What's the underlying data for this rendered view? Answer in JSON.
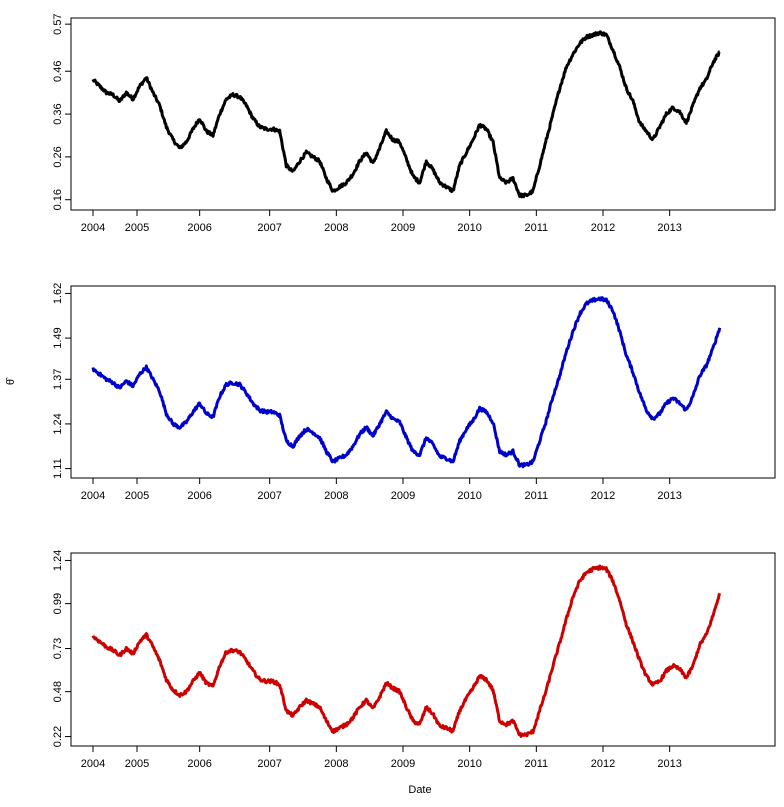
{
  "chart_data": [
    {
      "type": "line",
      "title": "",
      "xlabel": "",
      "ylabel": "",
      "color": "#000000",
      "xlim": [
        2004.0,
        2013.45
      ],
      "ylim": [
        0.15,
        0.575
      ],
      "yticks": [
        "0.16",
        "0.26",
        "0.36",
        "0.46",
        "0.57"
      ],
      "ytick_values": [
        0.16,
        0.26,
        0.36,
        0.46,
        0.57
      ],
      "xticks": [
        "2004",
        "2005",
        "2006",
        "2007",
        "2008",
        "2009",
        "2010",
        "2011",
        "2012",
        "2013"
      ],
      "xtick_values": [
        2004.0,
        2004.66,
        2005.6,
        2006.65,
        2007.65,
        2008.65,
        2009.65,
        2010.65,
        2011.65,
        2012.65
      ],
      "x": [
        2004.0,
        2004.1,
        2004.2,
        2004.3,
        2004.4,
        2004.5,
        2004.6,
        2004.7,
        2004.8,
        2004.9,
        2005.0,
        2005.1,
        2005.2,
        2005.3,
        2005.4,
        2005.5,
        2005.6,
        2005.7,
        2005.8,
        2005.9,
        2006.0,
        2006.1,
        2006.2,
        2006.3,
        2006.4,
        2006.5,
        2006.6,
        2006.7,
        2006.8,
        2006.9,
        2007.0,
        2007.1,
        2007.2,
        2007.3,
        2007.4,
        2007.5,
        2007.6,
        2007.7,
        2007.8,
        2007.9,
        2008.0,
        2008.1,
        2008.2,
        2008.3,
        2008.4,
        2008.5,
        2008.6,
        2008.7,
        2008.8,
        2008.9,
        2009.0,
        2009.1,
        2009.2,
        2009.3,
        2009.4,
        2009.5,
        2009.6,
        2009.7,
        2009.8,
        2009.9,
        2010.0,
        2010.1,
        2010.2,
        2010.3,
        2010.4,
        2010.5,
        2010.6,
        2010.7,
        2010.8,
        2010.9,
        2011.0,
        2011.1,
        2011.2,
        2011.3,
        2011.4,
        2011.5,
        2011.6,
        2011.7,
        2011.8,
        2011.9,
        2012.0,
        2012.1,
        2012.2,
        2012.3,
        2012.4,
        2012.5,
        2012.6,
        2012.7,
        2012.8,
        2012.9,
        2013.0,
        2013.1,
        2013.2,
        2013.3,
        2013.4
      ],
      "y": [
        0.44,
        0.425,
        0.41,
        0.405,
        0.39,
        0.41,
        0.395,
        0.425,
        0.445,
        0.41,
        0.38,
        0.33,
        0.3,
        0.28,
        0.295,
        0.325,
        0.35,
        0.32,
        0.31,
        0.36,
        0.395,
        0.405,
        0.4,
        0.38,
        0.35,
        0.33,
        0.325,
        0.325,
        0.32,
        0.24,
        0.225,
        0.25,
        0.27,
        0.26,
        0.25,
        0.21,
        0.18,
        0.19,
        0.2,
        0.22,
        0.25,
        0.27,
        0.245,
        0.28,
        0.32,
        0.3,
        0.295,
        0.255,
        0.215,
        0.2,
        0.25,
        0.23,
        0.2,
        0.19,
        0.18,
        0.24,
        0.27,
        0.3,
        0.335,
        0.325,
        0.295,
        0.21,
        0.2,
        0.21,
        0.17,
        0.17,
        0.18,
        0.24,
        0.3,
        0.36,
        0.42,
        0.47,
        0.5,
        0.525,
        0.54,
        0.545,
        0.55,
        0.545,
        0.51,
        0.47,
        0.42,
        0.39,
        0.34,
        0.32,
        0.3,
        0.33,
        0.36,
        0.375,
        0.365,
        0.34,
        0.38,
        0.42,
        0.44,
        0.48,
        0.505
      ]
    },
    {
      "type": "line",
      "title": "",
      "xlabel": "",
      "ylabel": "θ̂",
      "color": "#0000cc",
      "xlim": [
        2004.0,
        2013.45
      ],
      "ylim": [
        1.1,
        1.63
      ],
      "yticks": [
        "1.11",
        "1.24",
        "1.37",
        "1.49",
        "1.62"
      ],
      "ytick_values": [
        1.11,
        1.24,
        1.37,
        1.49,
        1.62
      ],
      "xticks": [
        "2004",
        "2005",
        "2006",
        "2007",
        "2008",
        "2009",
        "2010",
        "2011",
        "2012",
        "2013"
      ],
      "xtick_values": [
        2004.0,
        2004.66,
        2005.6,
        2006.65,
        2007.65,
        2008.65,
        2009.65,
        2010.65,
        2011.65,
        2012.65
      ],
      "x": [
        2004.0,
        2004.1,
        2004.2,
        2004.3,
        2004.4,
        2004.5,
        2004.6,
        2004.7,
        2004.8,
        2004.9,
        2005.0,
        2005.1,
        2005.2,
        2005.3,
        2005.4,
        2005.5,
        2005.6,
        2005.7,
        2005.8,
        2005.9,
        2006.0,
        2006.1,
        2006.2,
        2006.3,
        2006.4,
        2006.5,
        2006.6,
        2006.7,
        2006.8,
        2006.9,
        2007.0,
        2007.1,
        2007.2,
        2007.3,
        2007.4,
        2007.5,
        2007.6,
        2007.7,
        2007.8,
        2007.9,
        2008.0,
        2008.1,
        2008.2,
        2008.3,
        2008.4,
        2008.5,
        2008.6,
        2008.7,
        2008.8,
        2008.9,
        2009.0,
        2009.1,
        2009.2,
        2009.3,
        2009.4,
        2009.5,
        2009.6,
        2009.7,
        2009.8,
        2009.9,
        2010.0,
        2010.1,
        2010.2,
        2010.3,
        2010.4,
        2010.5,
        2010.6,
        2010.7,
        2010.8,
        2010.9,
        2011.0,
        2011.1,
        2011.2,
        2011.3,
        2011.4,
        2011.5,
        2011.6,
        2011.7,
        2011.8,
        2011.9,
        2012.0,
        2012.1,
        2012.2,
        2012.3,
        2012.4,
        2012.5,
        2012.6,
        2012.7,
        2012.8,
        2012.9,
        2013.0,
        2013.1,
        2013.2,
        2013.3,
        2013.4
      ],
      "y": [
        1.4,
        1.385,
        1.37,
        1.36,
        1.345,
        1.365,
        1.35,
        1.385,
        1.405,
        1.37,
        1.335,
        1.27,
        1.24,
        1.23,
        1.245,
        1.275,
        1.3,
        1.27,
        1.26,
        1.32,
        1.355,
        1.36,
        1.355,
        1.33,
        1.3,
        1.28,
        1.275,
        1.275,
        1.265,
        1.19,
        1.175,
        1.205,
        1.225,
        1.215,
        1.2,
        1.16,
        1.13,
        1.14,
        1.15,
        1.175,
        1.21,
        1.23,
        1.205,
        1.24,
        1.275,
        1.255,
        1.245,
        1.2,
        1.16,
        1.15,
        1.2,
        1.18,
        1.145,
        1.14,
        1.13,
        1.19,
        1.225,
        1.25,
        1.285,
        1.275,
        1.245,
        1.16,
        1.15,
        1.16,
        1.12,
        1.12,
        1.13,
        1.19,
        1.25,
        1.32,
        1.38,
        1.45,
        1.51,
        1.56,
        1.59,
        1.6,
        1.605,
        1.6,
        1.57,
        1.51,
        1.44,
        1.39,
        1.33,
        1.28,
        1.255,
        1.27,
        1.3,
        1.315,
        1.3,
        1.28,
        1.32,
        1.38,
        1.41,
        1.46,
        1.52
      ]
    },
    {
      "type": "line",
      "title": "",
      "xlabel": "Date",
      "ylabel": "",
      "color": "#cc0000",
      "xlim": [
        2004.0,
        2013.45
      ],
      "ylim": [
        0.2,
        1.26
      ],
      "yticks": [
        "0.22",
        "0.48",
        "0.73",
        "0.99",
        "1.24"
      ],
      "ytick_values": [
        0.22,
        0.48,
        0.73,
        0.99,
        1.24
      ],
      "xticks": [
        "2004",
        "2005",
        "2006",
        "2007",
        "2008",
        "2009",
        "2010",
        "2011",
        "2012",
        "2013"
      ],
      "xtick_values": [
        2004.0,
        2004.66,
        2005.6,
        2006.65,
        2007.65,
        2008.65,
        2009.65,
        2010.65,
        2011.65,
        2012.65
      ],
      "x": [
        2004.0,
        2004.1,
        2004.2,
        2004.3,
        2004.4,
        2004.5,
        2004.6,
        2004.7,
        2004.8,
        2004.9,
        2005.0,
        2005.1,
        2005.2,
        2005.3,
        2005.4,
        2005.5,
        2005.6,
        2005.7,
        2005.8,
        2005.9,
        2006.0,
        2006.1,
        2006.2,
        2006.3,
        2006.4,
        2006.5,
        2006.6,
        2006.7,
        2006.8,
        2006.9,
        2007.0,
        2007.1,
        2007.2,
        2007.3,
        2007.4,
        2007.5,
        2007.6,
        2007.7,
        2007.8,
        2007.9,
        2008.0,
        2008.1,
        2008.2,
        2008.3,
        2008.4,
        2008.5,
        2008.6,
        2008.7,
        2008.8,
        2008.9,
        2009.0,
        2009.1,
        2009.2,
        2009.3,
        2009.4,
        2009.5,
        2009.6,
        2009.7,
        2009.8,
        2009.9,
        2010.0,
        2010.1,
        2010.2,
        2010.3,
        2010.4,
        2010.5,
        2010.6,
        2010.7,
        2010.8,
        2010.9,
        2011.0,
        2011.1,
        2011.2,
        2011.3,
        2011.4,
        2011.5,
        2011.6,
        2011.7,
        2011.8,
        2011.9,
        2012.0,
        2012.1,
        2012.2,
        2012.3,
        2012.4,
        2012.5,
        2012.6,
        2012.7,
        2012.8,
        2012.9,
        2013.0,
        2013.1,
        2013.2,
        2013.3,
        2013.4
      ],
      "y": [
        0.8,
        0.77,
        0.74,
        0.72,
        0.69,
        0.73,
        0.7,
        0.77,
        0.81,
        0.74,
        0.66,
        0.55,
        0.49,
        0.46,
        0.48,
        0.54,
        0.59,
        0.53,
        0.51,
        0.63,
        0.71,
        0.72,
        0.71,
        0.66,
        0.6,
        0.55,
        0.54,
        0.54,
        0.52,
        0.37,
        0.34,
        0.39,
        0.43,
        0.41,
        0.39,
        0.31,
        0.25,
        0.27,
        0.29,
        0.33,
        0.39,
        0.43,
        0.38,
        0.45,
        0.53,
        0.5,
        0.48,
        0.39,
        0.31,
        0.29,
        0.39,
        0.35,
        0.28,
        0.27,
        0.25,
        0.37,
        0.44,
        0.5,
        0.57,
        0.55,
        0.49,
        0.31,
        0.29,
        0.31,
        0.23,
        0.23,
        0.25,
        0.37,
        0.49,
        0.63,
        0.76,
        0.9,
        1.03,
        1.12,
        1.17,
        1.19,
        1.2,
        1.19,
        1.12,
        1.01,
        0.87,
        0.77,
        0.66,
        0.57,
        0.52,
        0.54,
        0.6,
        0.63,
        0.61,
        0.56,
        0.63,
        0.75,
        0.81,
        0.92,
        1.05
      ]
    }
  ]
}
